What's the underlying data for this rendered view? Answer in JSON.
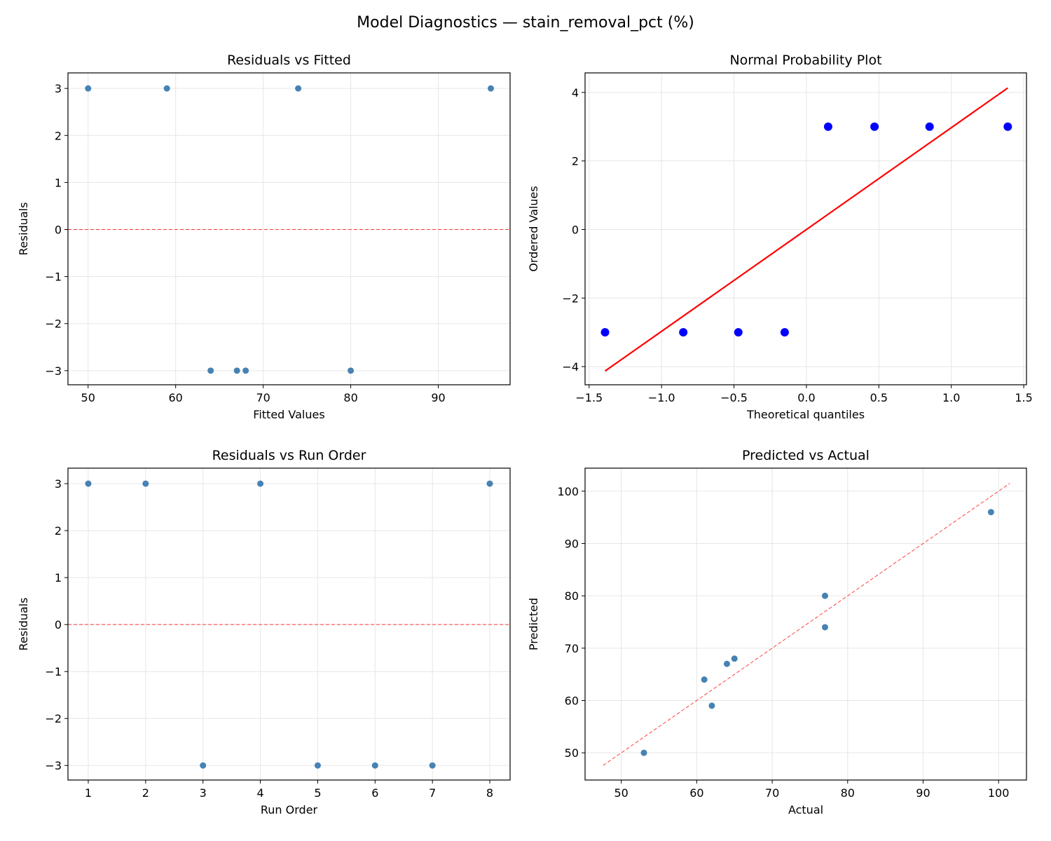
{
  "suptitle": "Model Diagnostics — stain_removal_pct (%)",
  "chart_data": [
    {
      "type": "scatter",
      "title": "Residuals vs Fitted",
      "xlabel": "Fitted Values",
      "ylabel": "Residuals",
      "xlim": [
        47.7,
        98.2
      ],
      "ylim": [
        -3.3,
        3.33
      ],
      "xticks": [
        50,
        60,
        70,
        80,
        90
      ],
      "yticks": [
        -3,
        -2,
        -1,
        0,
        1,
        2,
        3
      ],
      "grid": true,
      "points": {
        "x": [
          50,
          59,
          74,
          96,
          64,
          67,
          68,
          80
        ],
        "y": [
          3,
          3,
          3,
          3,
          -3,
          -3,
          -3,
          -3
        ]
      },
      "point_color": "#4682b4",
      "reference_line": {
        "type": "hline",
        "y": 0,
        "style": "dashed",
        "color": "#ff0000"
      }
    },
    {
      "type": "scatter",
      "title": "Normal Probability Plot",
      "xlabel": "Theoretical quantiles",
      "ylabel": "Ordered Values",
      "xlim": [
        -1.528,
        1.519
      ],
      "ylim": [
        -4.53,
        4.57
      ],
      "xticks": [
        -1.5,
        -1.0,
        -0.5,
        0.0,
        0.5,
        1.0,
        1.5
      ],
      "yticks": [
        -4,
        -2,
        0,
        2,
        4
      ],
      "grid": true,
      "points": {
        "x": [
          -1.39,
          -0.85,
          -0.47,
          -0.15,
          0.15,
          0.47,
          0.85,
          1.39
        ],
        "y": [
          -3,
          -3,
          -3,
          -3,
          3,
          3,
          3,
          3
        ]
      },
      "point_color": "#0000ff",
      "reference_line": {
        "type": "segment",
        "x": [
          -1.39,
          1.39
        ],
        "y": [
          -4.13,
          4.13
        ],
        "style": "solid",
        "color": "#ff0000"
      }
    },
    {
      "type": "scatter",
      "title": "Residuals vs Run Order",
      "xlabel": "Run Order",
      "ylabel": "Residuals",
      "xlim": [
        0.646,
        8.354
      ],
      "ylim": [
        -3.31,
        3.33
      ],
      "xticks": [
        1,
        2,
        3,
        4,
        5,
        6,
        7,
        8
      ],
      "yticks": [
        -3,
        -2,
        -1,
        0,
        1,
        2,
        3
      ],
      "grid": true,
      "points": {
        "x": [
          1,
          2,
          3,
          4,
          5,
          6,
          7,
          8
        ],
        "y": [
          3,
          3,
          -3,
          3,
          -3,
          -3,
          -3,
          3
        ]
      },
      "point_color": "#4682b4",
      "reference_line": {
        "type": "hline",
        "y": 0,
        "style": "dashed",
        "color": "#ff0000"
      }
    },
    {
      "type": "scatter",
      "title": "Predicted vs Actual",
      "xlabel": "Actual",
      "ylabel": "Predicted",
      "xlim": [
        45.2,
        103.7
      ],
      "ylim": [
        44.8,
        104.4
      ],
      "xticks": [
        50,
        60,
        70,
        80,
        90,
        100
      ],
      "yticks": [
        50,
        60,
        70,
        80,
        90,
        100
      ],
      "grid": true,
      "points": {
        "x": [
          53,
          62,
          77,
          99,
          61,
          64,
          65,
          77
        ],
        "y": [
          50,
          59,
          74,
          96,
          64,
          67,
          68,
          80
        ]
      },
      "point_color": "#4682b4",
      "reference_line": {
        "type": "segment",
        "x": [
          47.6,
          101.5
        ],
        "y": [
          47.6,
          101.5
        ],
        "style": "dashed",
        "color": "#ff0000"
      }
    }
  ]
}
